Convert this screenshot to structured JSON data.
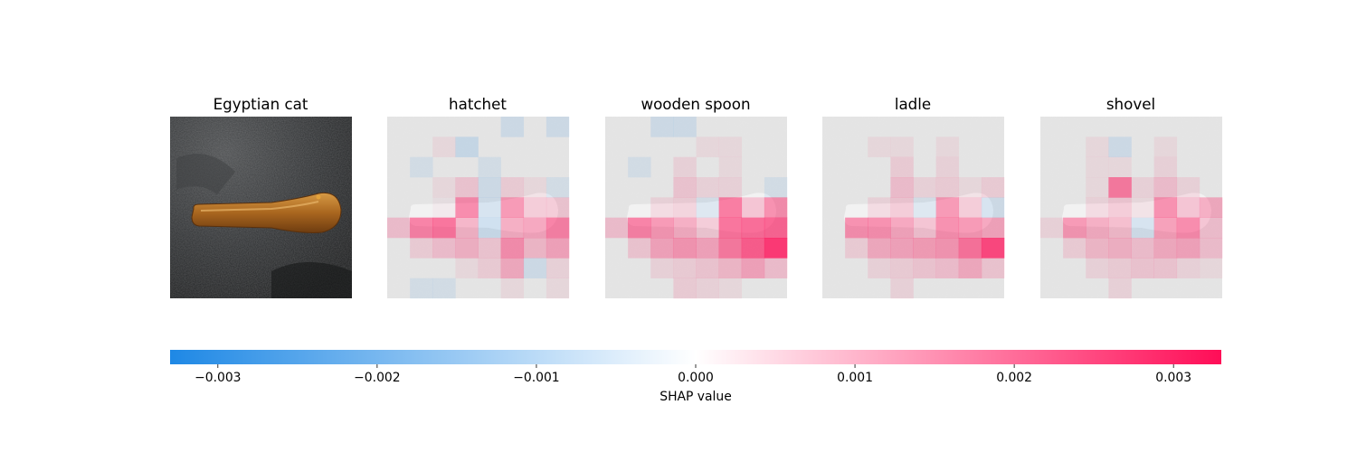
{
  "chart_data": {
    "type": "heatmap",
    "title": "",
    "original_image": {
      "label": "Egyptian cat",
      "subject": "wooden-spoon-on-dark-fabric"
    },
    "panels": [
      {
        "label": "hatchet",
        "grid": [
          [
            0,
            0,
            0,
            0,
            0,
            -0.4,
            0,
            -0.4
          ],
          [
            0,
            0,
            0.2,
            -0.5,
            0,
            0,
            0,
            0
          ],
          [
            0,
            -0.3,
            0,
            0,
            -0.3,
            0,
            0,
            0
          ],
          [
            0,
            0,
            0.2,
            0.5,
            -0.4,
            0.4,
            0.2,
            -0.3
          ],
          [
            0,
            0,
            0.1,
            1.4,
            -0.4,
            1.2,
            0.5,
            0.5
          ],
          [
            0.6,
            1.5,
            1.7,
            0.8,
            -0.5,
            0.9,
            1.0,
            1.5
          ],
          [
            0,
            0.4,
            0.6,
            0.8,
            0.5,
            1.3,
            0.7,
            1.0
          ],
          [
            0,
            0,
            0,
            0.2,
            0.4,
            0.9,
            -0.4,
            0.3
          ],
          [
            0,
            -0.3,
            -0.3,
            0,
            0,
            0.2,
            0,
            0.2
          ]
        ]
      },
      {
        "label": "wooden spoon",
        "grid": [
          [
            0,
            0,
            -0.4,
            -0.4,
            0,
            0,
            0,
            0
          ],
          [
            0,
            0,
            0,
            0,
            0.2,
            0.2,
            0,
            0
          ],
          [
            0,
            -0.3,
            0,
            0.3,
            0,
            0.2,
            0,
            0
          ],
          [
            0,
            0,
            0,
            0.5,
            0.3,
            0.3,
            0,
            -0.3
          ],
          [
            0,
            0,
            0.3,
            0.4,
            -0.3,
            1.6,
            0.6,
            1.3
          ],
          [
            0.6,
            1.5,
            1.2,
            0.9,
            0.5,
            1.7,
            1.8,
            1.9
          ],
          [
            0,
            0.5,
            1.0,
            1.2,
            1.0,
            1.6,
            2.0,
            2.5
          ],
          [
            0,
            0,
            0.3,
            0.4,
            0.5,
            0.7,
            1.0,
            0.6
          ],
          [
            0,
            0,
            0,
            0.4,
            0.3,
            0.2,
            0,
            0
          ]
        ]
      },
      {
        "label": "ladle",
        "grid": [
          [
            0,
            0,
            0,
            0,
            0,
            0,
            0,
            0
          ],
          [
            0,
            0,
            0.2,
            0.2,
            0,
            0.2,
            0,
            0
          ],
          [
            0,
            0,
            0,
            0.4,
            0,
            0.3,
            0,
            0
          ],
          [
            0,
            0,
            0,
            0.6,
            0.3,
            0.4,
            0.2,
            0.4
          ],
          [
            0,
            0,
            0.3,
            0.5,
            -0.3,
            1.2,
            0.5,
            -0.4
          ],
          [
            0,
            1.3,
            1.3,
            1.0,
            0.6,
            1.3,
            1.2,
            1.0
          ],
          [
            0,
            0.4,
            0.9,
            1.0,
            1.1,
            1.2,
            1.7,
            2.3
          ],
          [
            0,
            0,
            0.3,
            0.4,
            0.5,
            0.6,
            0.9,
            0.5
          ],
          [
            0,
            0,
            0,
            0.3,
            0,
            0,
            0,
            0
          ]
        ]
      },
      {
        "label": "shovel",
        "grid": [
          [
            0,
            0,
            0,
            0,
            0,
            0,
            0,
            0
          ],
          [
            0,
            0,
            0.2,
            -0.4,
            0,
            0.2,
            0,
            0
          ],
          [
            0,
            0,
            0.2,
            0.2,
            0,
            0.3,
            0,
            0
          ],
          [
            0,
            0,
            0.2,
            1.6,
            0.3,
            0.6,
            0.3,
            0
          ],
          [
            0,
            0,
            0.3,
            0.5,
            0.2,
            1.3,
            0.6,
            0.9
          ],
          [
            0.3,
            1.2,
            0.9,
            0.7,
            -0.4,
            1.1,
            1.4,
            0.6
          ],
          [
            0,
            0.4,
            0.7,
            0.8,
            0.6,
            0.9,
            1.0,
            0.6
          ],
          [
            0,
            0,
            0.3,
            0.4,
            0.5,
            0.5,
            0.3,
            0.2
          ],
          [
            0,
            0,
            0,
            0.3,
            0,
            0,
            0,
            0
          ]
        ]
      }
    ],
    "colorbar": {
      "min": -0.0033,
      "max": 0.0033,
      "ticks": [
        -0.003,
        -0.002,
        -0.001,
        0.0,
        0.001,
        0.002,
        0.003
      ],
      "tick_labels": [
        "−0.003",
        "−0.002",
        "−0.001",
        "0.000",
        "0.001",
        "0.002",
        "0.003"
      ],
      "label": "SHAP value",
      "negative_color": "#1e88e5",
      "positive_color": "#ff0d57"
    },
    "grid_units": "thousandths of SHAP value"
  }
}
